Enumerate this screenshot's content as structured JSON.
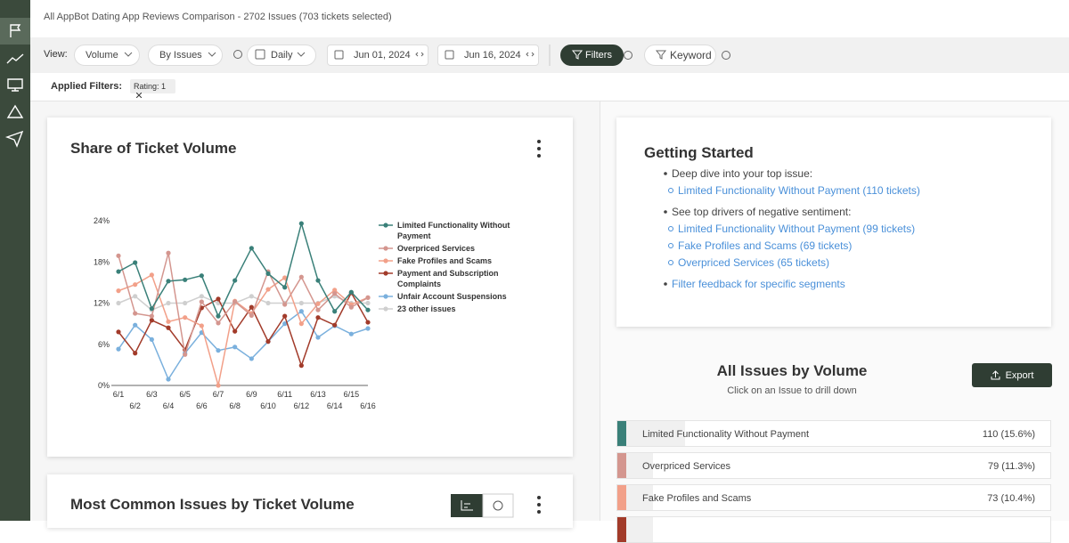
{
  "header": {
    "title": "All AppBot Dating App Reviews Comparison - 2702 Issues (703 tickets selected)"
  },
  "toolbar": {
    "view_label": "View:",
    "dropdowns": [
      "Volume",
      "By Issues",
      "Daily"
    ],
    "dates": [
      "Jun 01, 2024",
      "Jun 16, 2024"
    ],
    "filters": "Filters",
    "keyword": "Keyword"
  },
  "applied_filters": {
    "label": "Applied Filters:",
    "tags": [
      "Rating: 1"
    ]
  },
  "chart_data": {
    "type": "line",
    "title": "Share of Ticket Volume",
    "categories": [
      "6/1",
      "6/2",
      "6/3",
      "6/4",
      "6/5",
      "6/6",
      "6/7",
      "6/8",
      "6/9",
      "6/10",
      "6/11",
      "6/12",
      "6/13",
      "6/14",
      "6/15",
      "6/16"
    ],
    "series": [
      {
        "name": "Limited Functionality Without Payment",
        "color": "#3a8079",
        "values": [
          16.6,
          17.9,
          11.2,
          15.2,
          15.4,
          16,
          10.1,
          15.3,
          20,
          16.3,
          14.3,
          23.6,
          15.3,
          10.8,
          13.6,
          11
        ]
      },
      {
        "name": "Overpriced Services",
        "color": "#d4968f",
        "values": [
          18.9,
          10.5,
          10.1,
          19.3,
          4.5,
          12.2,
          9.1,
          12.2,
          10.2,
          16.6,
          11.8,
          15.8,
          11,
          13.4,
          11.4,
          12.8
        ]
      },
      {
        "name": "Fake Profiles and Scams",
        "color": "#f2a089",
        "values": [
          13.8,
          14.7,
          16.1,
          9.3,
          9.9,
          8.7,
          0,
          12.3,
          10.5,
          14,
          15.7,
          9,
          11.9,
          13.9,
          11.8,
          12.8
        ]
      },
      {
        "name": "Payment and Subscription Complaints",
        "color": "#a23b2a",
        "values": [
          7.8,
          4.7,
          9.5,
          8.4,
          5.2,
          11.3,
          12.6,
          7.9,
          11.4,
          6.4,
          10.1,
          2.9,
          9.9,
          8.8,
          13.5,
          9.2
        ]
      },
      {
        "name": "Unfair Account Suspensions",
        "color": "#7ab0dd",
        "values": [
          5.3,
          8.8,
          6.7,
          0.9,
          4.7,
          7.7,
          5.1,
          5.6,
          3.9,
          6.4,
          9,
          10.8,
          7,
          8.7,
          7.5,
          8.3
        ]
      },
      {
        "name": "23 other issues",
        "color": "#cfcfcf",
        "values": [
          12,
          13,
          11,
          12,
          12,
          13,
          12,
          12,
          13,
          12,
          12,
          12,
          12,
          13,
          12,
          12
        ]
      }
    ],
    "ylim": [
      0,
      24
    ],
    "yticks": [
      {
        "value": 0,
        "label": "0%"
      },
      {
        "value": 6,
        "label": "6%"
      },
      {
        "value": 12,
        "label": "12%"
      },
      {
        "value": 18,
        "label": "18%"
      },
      {
        "value": 24,
        "label": "24%"
      }
    ],
    "grid": false
  },
  "second_card": {
    "title": "Most Common Issues by Ticket Volume"
  },
  "getting_started": {
    "title": "Getting Started",
    "items": [
      {
        "text": "Deep dive into your top issue:",
        "links": [
          "Limited Functionality Without Payment (110 tickets)"
        ]
      },
      {
        "text": "See top drivers of negative sentiment:",
        "links": [
          "Limited Functionality Without Payment (99 tickets)",
          "Fake Profiles and Scams (69 tickets)",
          "Overpriced Services (65 tickets)"
        ]
      }
    ],
    "footer_link": "Filter feedback for specific segments"
  },
  "all_issues": {
    "title": "All Issues by Volume",
    "subtitle": "Click on an Issue to drill down",
    "export": "Export",
    "rows": [
      {
        "name": "Limited Functionality Without Payment",
        "count": "110 (15.6%)",
        "color": "#3a8079"
      },
      {
        "name": "Overpriced Services",
        "count": "79 (11.3%)",
        "color": "#d4968f"
      },
      {
        "name": "Fake Profiles and Scams",
        "count": "73 (10.4%)",
        "color": "#f2a089"
      },
      {
        "color": "#a23b2a"
      }
    ]
  }
}
